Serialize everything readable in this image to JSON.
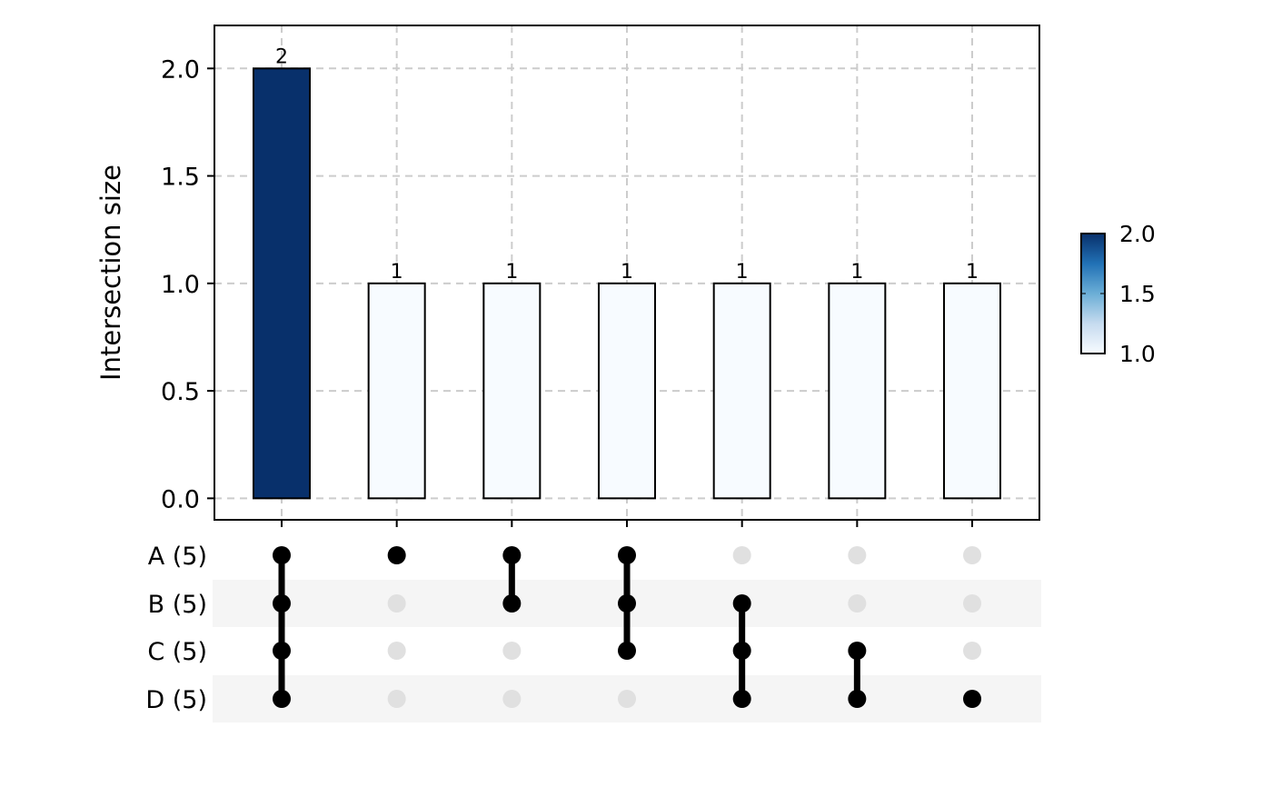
{
  "chart_data": {
    "type": "bar",
    "subtype": "upset",
    "ylabel": "Intersection size",
    "ylim": [
      -0.1,
      2.2
    ],
    "yticks": [
      {
        "value": 0.0,
        "label": "0.0"
      },
      {
        "value": 0.5,
        "label": "0.5"
      },
      {
        "value": 1.0,
        "label": "1.0"
      },
      {
        "value": 1.5,
        "label": "1.5"
      },
      {
        "value": 2.0,
        "label": "2.0"
      }
    ],
    "grid": true,
    "sets": [
      {
        "name": "A",
        "label": "A (5)"
      },
      {
        "name": "B",
        "label": "B (5)"
      },
      {
        "name": "C",
        "label": "C (5)"
      },
      {
        "name": "D",
        "label": "D (5)"
      }
    ],
    "intersections": [
      {
        "members": [
          "A",
          "B",
          "C",
          "D"
        ],
        "value": 2,
        "label": "2"
      },
      {
        "members": [
          "A"
        ],
        "value": 1,
        "label": "1"
      },
      {
        "members": [
          "A",
          "B"
        ],
        "value": 1,
        "label": "1"
      },
      {
        "members": [
          "A",
          "B",
          "C"
        ],
        "value": 1,
        "label": "1"
      },
      {
        "members": [
          "B",
          "C",
          "D"
        ],
        "value": 1,
        "label": "1"
      },
      {
        "members": [
          "C",
          "D"
        ],
        "value": 1,
        "label": "1"
      },
      {
        "members": [
          "D"
        ],
        "value": 1,
        "label": "1"
      }
    ],
    "colorbar": {
      "range": [
        1.0,
        2.0
      ],
      "colors": [
        "#f7fbff",
        "#c6dbef",
        "#6baed6",
        "#2171b5",
        "#08306b"
      ],
      "ticks": [
        {
          "value": 2.0,
          "label": "2.0"
        },
        {
          "value": 1.5,
          "label": "1.5"
        },
        {
          "value": 1.0,
          "label": "1.0"
        }
      ],
      "placement": "right"
    },
    "colors": {
      "active_dot": "#000000",
      "inactive_dot": "#e0e0e0",
      "stripe": "#f5f5f5",
      "grid": "#cccccc"
    }
  }
}
